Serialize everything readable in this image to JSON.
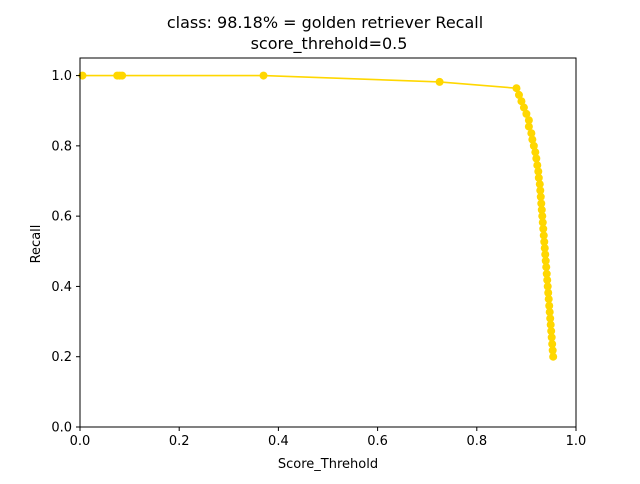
{
  "chart_data": {
    "type": "line",
    "title_line1": "class: 98.18% = golden retriever Recall",
    "title_line2": "score_threhold=0.5",
    "xlabel": "Score_Threhold",
    "ylabel": "Recall",
    "xlim": [
      0.0,
      1.0
    ],
    "ylim": [
      0.0,
      1.05
    ],
    "xticks": [
      "0.0",
      "0.2",
      "0.4",
      "0.6",
      "0.8",
      "1.0"
    ],
    "yticks": [
      "0.0",
      "0.2",
      "0.4",
      "0.6",
      "0.8",
      "1.0"
    ],
    "grid": false,
    "series": [
      {
        "color": "#FFD700",
        "marker": "circle",
        "x": [
          0.005,
          0.075,
          0.08,
          0.085,
          0.37,
          0.725,
          0.88,
          0.885,
          0.89,
          0.895,
          0.9,
          0.905,
          0.905,
          0.91,
          0.912,
          0.915,
          0.918,
          0.92,
          0.922,
          0.924,
          0.925,
          0.927,
          0.928,
          0.929,
          0.93,
          0.931,
          0.932,
          0.933,
          0.934,
          0.935,
          0.936,
          0.937,
          0.938,
          0.939,
          0.94,
          0.941,
          0.942,
          0.943,
          0.944,
          0.945,
          0.946,
          0.947,
          0.948,
          0.949,
          0.95,
          0.951,
          0.952,
          0.953,
          0.954
        ],
        "y": [
          1.0,
          1.0,
          1.0,
          1.0,
          1.0,
          0.982,
          0.964,
          0.945,
          0.927,
          0.909,
          0.891,
          0.873,
          0.855,
          0.836,
          0.818,
          0.8,
          0.782,
          0.764,
          0.745,
          0.727,
          0.709,
          0.691,
          0.673,
          0.655,
          0.636,
          0.618,
          0.6,
          0.582,
          0.564,
          0.545,
          0.527,
          0.509,
          0.491,
          0.473,
          0.455,
          0.436,
          0.418,
          0.4,
          0.382,
          0.364,
          0.345,
          0.327,
          0.309,
          0.291,
          0.273,
          0.255,
          0.236,
          0.218,
          0.2
        ]
      }
    ]
  }
}
